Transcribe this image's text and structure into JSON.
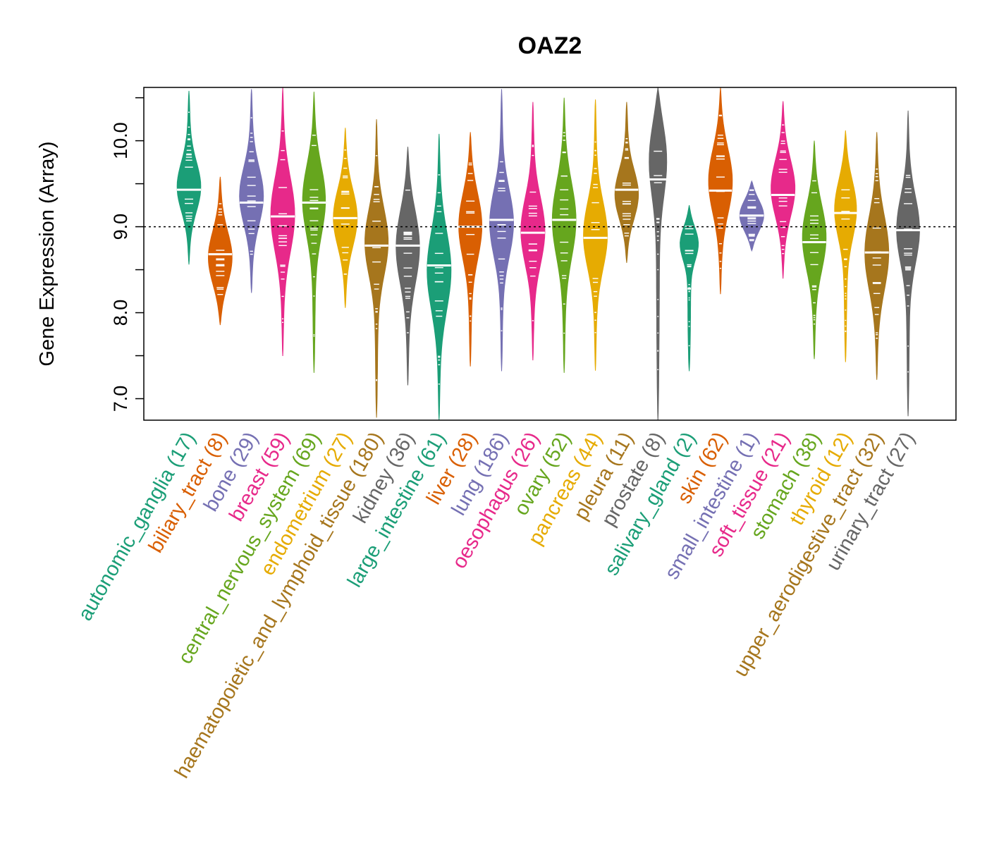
{
  "chart_data": {
    "type": "violin-beeswarm",
    "title": "OAZ2",
    "ylabel": "Gene Expression (Array)",
    "ylim": [
      6.75,
      10.62
    ],
    "yticks": [
      "7.0",
      "8.0",
      "9.0",
      "10.0"
    ],
    "reference_line": 9.0,
    "grid": false,
    "categories": [
      {
        "name": "autonomic_ganglia",
        "n": "(17)",
        "color": "#1B9E77",
        "min": 8.56,
        "max": 10.58,
        "median": 9.43,
        "mode": 9.45,
        "sd": 0.3
      },
      {
        "name": "biliary_tract",
        "n": "(8)",
        "color": "#D95F02",
        "min": 7.86,
        "max": 9.58,
        "median": 8.68,
        "mode": 8.62,
        "sd": 0.33
      },
      {
        "name": "bone",
        "n": "(29)",
        "color": "#7570B3",
        "min": 8.23,
        "max": 10.6,
        "median": 9.28,
        "mode": 9.35,
        "sd": 0.35
      },
      {
        "name": "breast",
        "n": "(59)",
        "color": "#E7298A",
        "min": 7.5,
        "max": 10.62,
        "median": 9.12,
        "mode": 9.15,
        "sd": 0.45
      },
      {
        "name": "central_nervous_system",
        "n": "(69)",
        "color": "#66A61E",
        "min": 7.3,
        "max": 10.57,
        "median": 9.28,
        "mode": 9.35,
        "sd": 0.42
      },
      {
        "name": "endometrium",
        "n": "(27)",
        "color": "#E6AB02",
        "min": 8.06,
        "max": 10.15,
        "median": 9.1,
        "mode": 9.1,
        "sd": 0.35
      },
      {
        "name": "haematopoietic_and_lymphoid_tissue",
        "n": "(180)",
        "color": "#A6761D",
        "min": 6.78,
        "max": 10.25,
        "median": 8.78,
        "mode": 8.85,
        "sd": 0.4
      },
      {
        "name": "kidney",
        "n": "(36)",
        "color": "#666666",
        "min": 7.16,
        "max": 9.93,
        "median": 8.78,
        "mode": 8.8,
        "sd": 0.45
      },
      {
        "name": "large_intestine",
        "n": "(61)",
        "color": "#1B9E77",
        "min": 6.75,
        "max": 10.08,
        "median": 8.55,
        "mode": 8.5,
        "sd": 0.48
      },
      {
        "name": "liver",
        "n": "(28)",
        "color": "#D95F02",
        "min": 7.38,
        "max": 10.1,
        "median": 9.0,
        "mode": 9.05,
        "sd": 0.4
      },
      {
        "name": "lung",
        "n": "(186)",
        "color": "#7570B3",
        "min": 7.32,
        "max": 10.6,
        "median": 9.08,
        "mode": 9.05,
        "sd": 0.4
      },
      {
        "name": "oesophagus",
        "n": "(26)",
        "color": "#E7298A",
        "min": 7.45,
        "max": 10.45,
        "median": 8.93,
        "mode": 8.95,
        "sd": 0.4
      },
      {
        "name": "ovary",
        "n": "(52)",
        "color": "#66A61E",
        "min": 7.3,
        "max": 10.5,
        "median": 9.08,
        "mode": 9.1,
        "sd": 0.45
      },
      {
        "name": "pancreas",
        "n": "(44)",
        "color": "#E6AB02",
        "min": 7.33,
        "max": 10.48,
        "median": 8.87,
        "mode": 8.9,
        "sd": 0.4
      },
      {
        "name": "pleura",
        "n": "(11)",
        "color": "#A6761D",
        "min": 8.58,
        "max": 10.45,
        "median": 9.43,
        "mode": 9.35,
        "sd": 0.3
      },
      {
        "name": "prostate",
        "n": "(8)",
        "color": "#666666",
        "min": 6.75,
        "max": 10.62,
        "median": 9.55,
        "mode": 9.9,
        "sd": 0.45
      },
      {
        "name": "salivary_gland",
        "n": "(2)",
        "color": "#1B9E77",
        "min": 7.32,
        "max": 9.25,
        "median": 8.28,
        "mode": 8.85,
        "sd": 0.2
      },
      {
        "name": "skin",
        "n": "(62)",
        "color": "#D95F02",
        "min": 8.22,
        "max": 10.62,
        "median": 9.42,
        "mode": 9.55,
        "sd": 0.4
      },
      {
        "name": "small_intestine",
        "n": "(1)",
        "color": "#7570B3",
        "min": 8.72,
        "max": 9.53,
        "median": 9.13,
        "mode": 9.13,
        "sd": 0.2
      },
      {
        "name": "soft_tissue",
        "n": "(21)",
        "color": "#E7298A",
        "min": 8.4,
        "max": 10.46,
        "median": 9.37,
        "mode": 9.45,
        "sd": 0.35
      },
      {
        "name": "stomach",
        "n": "(38)",
        "color": "#66A61E",
        "min": 7.46,
        "max": 10.0,
        "median": 8.82,
        "mode": 8.9,
        "sd": 0.4
      },
      {
        "name": "thyroid",
        "n": "(12)",
        "color": "#E6AB02",
        "min": 7.43,
        "max": 10.12,
        "median": 9.16,
        "mode": 9.25,
        "sd": 0.35
      },
      {
        "name": "upper_aerodigestive_tract",
        "n": "(32)",
        "color": "#A6761D",
        "min": 7.22,
        "max": 10.1,
        "median": 8.7,
        "mode": 8.7,
        "sd": 0.45
      },
      {
        "name": "urinary_tract",
        "n": "(27)",
        "color": "#666666",
        "min": 6.8,
        "max": 10.35,
        "median": 8.96,
        "mode": 9.0,
        "sd": 0.4
      }
    ]
  }
}
